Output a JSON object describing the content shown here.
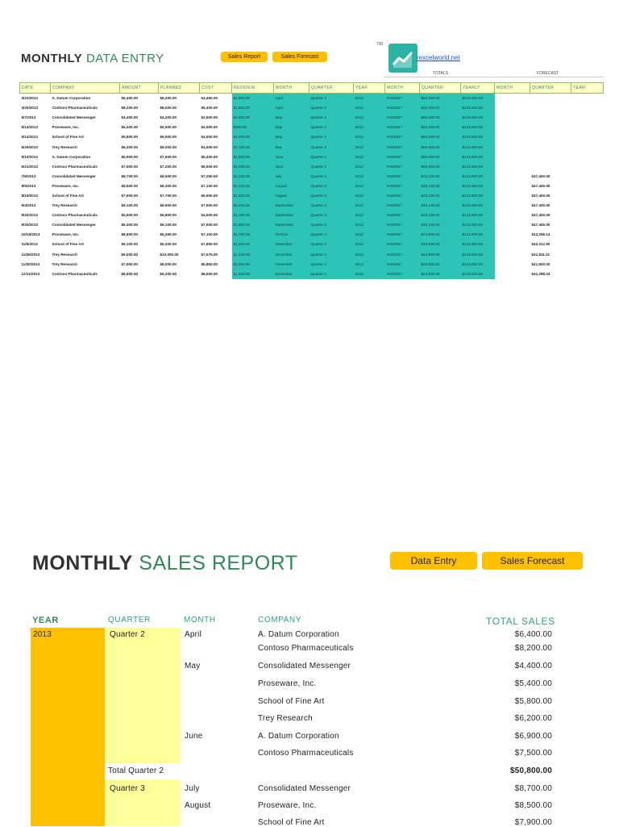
{
  "data_entry": {
    "title_bold": "MONTHLY",
    "title_rest": "DATA ENTRY",
    "nav_buttons": [
      "Sales Report",
      "Sales Forecast"
    ],
    "logo_number": "730",
    "logo_link": "rexcelworld.net",
    "group_totals": "TOTALS",
    "group_forecast": "FORECAST",
    "columns": [
      "DATE",
      "COMPANY",
      "AMOUNT",
      "PLANNED",
      "COST",
      "REVENUE",
      "MONTH",
      "QUARTER",
      "YEAR",
      "MONTH",
      "QUARTER",
      "YEARLY",
      "MONTH",
      "QUARTER",
      "YEAR"
    ],
    "rows": [
      [
        "4/23/2013",
        "A. Datum Corporation",
        "$6,400.00",
        "$6,200.00",
        "$4,450.00",
        "$1,950.00",
        "April",
        "Quarter 2",
        "2013",
        "#ADDIN?",
        "$50,800.00",
        "$143,800.00",
        "",
        "",
        ""
      ],
      [
        "4/25/2013",
        "Contoso Pharmaceuticals",
        "$8,200.00",
        "$8,000.00",
        "$6,400.00",
        "$1,800.00",
        "April",
        "Quarter 2",
        "2013",
        "#ADDIN?",
        "$50,800.00",
        "$143,800.00",
        "",
        "",
        ""
      ],
      [
        "5/7/2013",
        "Consolidated Messenger",
        "$4,400.00",
        "$4,200.00",
        "$2,600.00",
        "$1,800.00",
        "May",
        "Quarter 2",
        "2013",
        "#ADDIN?",
        "$50,800.00",
        "$143,800.00",
        "",
        "",
        ""
      ],
      [
        "5/14/2013",
        "Proseware, Inc.",
        "$5,400.00",
        "$5,500.00",
        "$4,500.00",
        "$900.00",
        "May",
        "Quarter 2",
        "2013",
        "#ADDIN?",
        "$50,800.00",
        "$143,800.00",
        "",
        "",
        ""
      ],
      [
        "5/14/2013",
        "School of Fine Art",
        "$5,800.00",
        "$6,000.00",
        "$4,500.00",
        "$1,300.00",
        "May",
        "Quarter 2",
        "2013",
        "#ADDIN?",
        "$50,800.00",
        "$143,800.00",
        "",
        "",
        ""
      ],
      [
        "5/29/2013",
        "Trey Research",
        "$6,200.00",
        "$6,000.00",
        "$4,500.00",
        "$1,700.00",
        "May",
        "Quarter 2",
        "2013",
        "#ADDIN?",
        "$50,800.00",
        "$143,800.00",
        "",
        "",
        ""
      ],
      [
        "6/10/2013",
        "A. Datum Corporation",
        "$6,900.00",
        "$7,500.00",
        "$5,400.00",
        "$1,500.00",
        "June",
        "Quarter 2",
        "2013",
        "#ADDIN?",
        "$50,800.00",
        "$143,800.00",
        "",
        "",
        ""
      ],
      [
        "6/21/2013",
        "Contoso Pharmaceuticals",
        "$7,500.00",
        "$7,200.00",
        "$6,500.00",
        "$1,000.00",
        "June",
        "Quarter 2",
        "2013",
        "#ADDIN?",
        "$50,800.00",
        "$143,800.00",
        "",
        "",
        ""
      ],
      [
        "7/6/2013",
        "Consolidated Messenger",
        "$8,700.00",
        "$8,500.00",
        "$7,250.00",
        "$1,450.00",
        "July",
        "Quarter 3",
        "2013",
        "#ADDIN?",
        "$49,100.00",
        "$143,800.00",
        "",
        "$47,400.00",
        ""
      ],
      [
        "8/5/2013",
        "Proseware, Inc.",
        "$8,500.00",
        "$8,300.00",
        "$7,100.00",
        "$1,400.00",
        "August",
        "Quarter 3",
        "2013",
        "#ADDIN?",
        "$49,100.00",
        "$143,800.00",
        "",
        "$47,400.00",
        ""
      ],
      [
        "8/19/2013",
        "School of Fine Art",
        "$7,900.00",
        "$7,700.00",
        "$6,600.00",
        "$1,300.00",
        "August",
        "Quarter 3",
        "2013",
        "#ADDIN?",
        "$49,100.00",
        "$143,800.00",
        "",
        "$47,400.00",
        ""
      ],
      [
        "9/4/2013",
        "Trey Research",
        "$9,100.00",
        "$8,900.00",
        "$7,900.00",
        "$1,200.00",
        "September",
        "Quarter 3",
        "2013",
        "#ADDIN?",
        "$49,100.00",
        "$143,800.00",
        "",
        "$47,400.00",
        ""
      ],
      [
        "9/20/2013",
        "Contoso Pharmaceuticals",
        "$5,600.00",
        "$5,800.00",
        "$4,500.00",
        "$1,100.00",
        "September",
        "Quarter 3",
        "2013",
        "#ADDIN?",
        "$49,100.00",
        "$143,800.00",
        "",
        "$47,400.00",
        ""
      ],
      [
        "9/25/2013",
        "Consolidated Messenger",
        "$9,300.00",
        "$9,100.00",
        "$7,500.00",
        "$1,800.00",
        "September",
        "Quarter 3",
        "2013",
        "#ADDIN?",
        "$49,100.00",
        "$143,800.00",
        "",
        "$47,400.00",
        ""
      ],
      [
        "10/15/2013",
        "Proseware, Inc.",
        "$8,800.00",
        "$9,350.00",
        "$7,100.00",
        "$1,700.00",
        "October",
        "Quarter 4",
        "2013",
        "#ADDIN?",
        "$43,900.00",
        "$143,800.00",
        "",
        "$43,256.14",
        ""
      ],
      [
        "11/5/2013",
        "School of Fine Art",
        "$9,100.00",
        "$9,200.00",
        "$7,850.00",
        "$1,250.00",
        "November",
        "Quarter 4",
        "2013",
        "#ADDIN?",
        "$43,900.00",
        "$143,800.00",
        "",
        "$42,312.90",
        ""
      ],
      [
        "11/26/2013",
        "Trey Research",
        "$9,000.00",
        "$10,000.00",
        "$7,575.00",
        "$1,425.00",
        "November",
        "Quarter 4",
        "2013",
        "#ADDIN?",
        "$43,900.00",
        "$143,800.00",
        "",
        "$41,811.11",
        ""
      ],
      [
        "11/30/2013",
        "Trey Research",
        "$7,500.00",
        "$8,000.00",
        "$5,850.00",
        "$1,650.00",
        "November",
        "Quarter 4",
        "2013",
        "#ADDIN?",
        "$43,900.00",
        "$143,800.00",
        "",
        "$41,500.00",
        ""
      ],
      [
        "12/11/2013",
        "Contoso Pharmaceuticals",
        "$9,500.00",
        "$9,200.00",
        "$8,500.00",
        "$1,000.00",
        "December",
        "Quarter 4",
        "2013",
        "#ADDIN?",
        "$43,900.00",
        "$143,800.00",
        "",
        "$41,288.24",
        ""
      ]
    ]
  },
  "sales_report": {
    "title_bold": "MONTHLY",
    "title_rest": "SALES REPORT",
    "nav_buttons": [
      "Data Entry",
      "Sales Forecast"
    ],
    "headers": {
      "year": "YEAR",
      "quarter": "QUARTER",
      "month": "MONTH",
      "company": "COMPANY",
      "total": "TOTAL SALES"
    },
    "year": "2013",
    "quarter_2": "Quarter 2",
    "quarter_2_total_label": "Total Quarter 2",
    "quarter_2_total": "$50,800.00",
    "quarter_3": "Quarter 3",
    "months": {
      "april": "April",
      "may": "May",
      "june": "June",
      "july": "July",
      "august": "August"
    },
    "lines": [
      {
        "company": "A. Datum Corporation",
        "amount": "$6,400.00"
      },
      {
        "company": "Contoso Pharmaceuticals",
        "amount": "$8,200.00"
      },
      {
        "company": "Consolidated Messenger",
        "amount": "$4,400.00"
      },
      {
        "company": "Proseware, Inc.",
        "amount": "$5,400.00"
      },
      {
        "company": "School of Fine Art",
        "amount": "$5,800.00"
      },
      {
        "company": "Trey Research",
        "amount": "$6,200.00"
      },
      {
        "company": "A. Datum Corporation",
        "amount": "$6,900.00"
      },
      {
        "company": "Contoso Pharmaceuticals",
        "amount": "$7,500.00"
      },
      {
        "company": "Consolidated Messenger",
        "amount": "$8,700.00"
      },
      {
        "company": "Proseware, Inc.",
        "amount": "$8,500.00"
      },
      {
        "company": "School of Fine Art",
        "amount": "$7,900.00"
      }
    ]
  },
  "colors": {
    "accent_yellow": "#ffc000",
    "pale_yellow": "#ffff99",
    "teal": "#2bc4b6",
    "green_text": "#2e8b57"
  }
}
